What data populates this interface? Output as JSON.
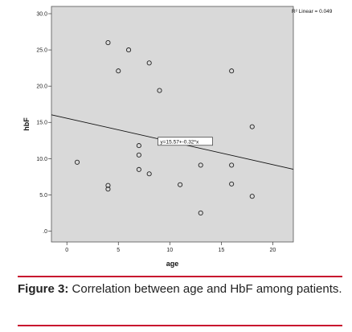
{
  "chart_data": {
    "type": "scatter",
    "xlabel": "age",
    "ylabel": "hbF",
    "xlim": [
      -1.5,
      22
    ],
    "ylim": [
      -1.5,
      31
    ],
    "x_ticks": [
      0,
      5,
      10,
      15,
      20
    ],
    "y_ticks": [
      0.0,
      5.0,
      10.0,
      15.0,
      20.0,
      25.0,
      30.0
    ],
    "x_tick_labels": [
      "0",
      "5",
      "10",
      "15",
      "20"
    ],
    "y_tick_labels": [
      ".0",
      "5.0",
      "10.0",
      "15.0",
      "20.0",
      "25.0",
      "30.0"
    ],
    "grid": false,
    "points": [
      {
        "x": 1,
        "y": 9.5
      },
      {
        "x": 4,
        "y": 26.0
      },
      {
        "x": 4,
        "y": 6.3
      },
      {
        "x": 4,
        "y": 5.8
      },
      {
        "x": 5,
        "y": 22.1
      },
      {
        "x": 6,
        "y": 25.0
      },
      {
        "x": 7,
        "y": 11.8
      },
      {
        "x": 7,
        "y": 10.5
      },
      {
        "x": 7,
        "y": 8.5
      },
      {
        "x": 8,
        "y": 23.2
      },
      {
        "x": 8,
        "y": 7.9
      },
      {
        "x": 9,
        "y": 19.4
      },
      {
        "x": 11,
        "y": 6.4
      },
      {
        "x": 13,
        "y": 9.1
      },
      {
        "x": 13,
        "y": 2.5
      },
      {
        "x": 16,
        "y": 22.1
      },
      {
        "x": 16,
        "y": 9.1
      },
      {
        "x": 16,
        "y": 6.5
      },
      {
        "x": 18,
        "y": 14.4
      },
      {
        "x": 18,
        "y": 4.8
      }
    ],
    "fit_line": {
      "intercept": 15.57,
      "slope": -0.32,
      "equation_label": "y=15.57+-0.32*x"
    },
    "r2_label": "R² Linear = 0.049",
    "colors": {
      "panel_background": "#d9d9d9",
      "marker": "#222222",
      "fit_line": "#111111"
    }
  },
  "caption": {
    "label": "Figure 3:",
    "text": "Correlation between age and HbF among patients."
  }
}
